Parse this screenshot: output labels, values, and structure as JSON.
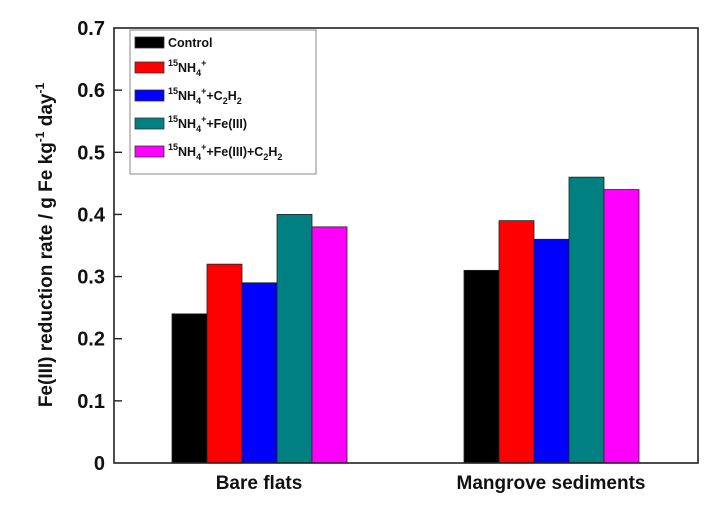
{
  "chart_data": {
    "type": "bar",
    "title": "",
    "xlabel": "",
    "ylabel": "Fe(III) reduction rate / g Fe kg-1 day-1",
    "ylabel_parts": {
      "main": "Fe(III) reduction rate / g Fe kg",
      "sup1": "-1",
      "mid": " day",
      "sup2": "-1"
    },
    "ylim": [
      0,
      0.7
    ],
    "yticks": [
      0,
      0.1,
      0.2,
      0.3,
      0.4,
      0.5,
      0.6,
      0.7
    ],
    "ytick_labels": [
      "0",
      "0.1",
      "0.2",
      "0.3",
      "0.4",
      "0.5",
      "0.6",
      "0.7"
    ],
    "grid": false,
    "legend_position": "top-left",
    "categories": [
      "Bare flats",
      "Mangrove sediments"
    ],
    "series": [
      {
        "name": "Control",
        "color": "#000000",
        "values": [
          0.24,
          0.31
        ],
        "label_parts": [
          {
            "t": "Control"
          }
        ]
      },
      {
        "name": "15NH4+",
        "color": "#ff0000",
        "values": [
          0.32,
          0.39
        ],
        "label_parts": [
          {
            "t": "15",
            "s": "sup"
          },
          {
            "t": "NH"
          },
          {
            "t": "4",
            "s": "sub"
          },
          {
            "t": "+",
            "s": "sup"
          }
        ]
      },
      {
        "name": "15NH4+ +C2H2",
        "color": "#0000ff",
        "values": [
          0.29,
          0.36
        ],
        "label_parts": [
          {
            "t": "15",
            "s": "sup"
          },
          {
            "t": "NH"
          },
          {
            "t": "4",
            "s": "sub"
          },
          {
            "t": "+",
            "s": "sup"
          },
          {
            "t": "+C"
          },
          {
            "t": "2",
            "s": "sub"
          },
          {
            "t": "H"
          },
          {
            "t": "2",
            "s": "sub"
          }
        ]
      },
      {
        "name": "15NH4+ +Fe(III)",
        "color": "#008080",
        "values": [
          0.4,
          0.46
        ],
        "label_parts": [
          {
            "t": "15",
            "s": "sup"
          },
          {
            "t": "NH"
          },
          {
            "t": "4",
            "s": "sub"
          },
          {
            "t": "+",
            "s": "sup"
          },
          {
            "t": "+Fe(III)"
          }
        ]
      },
      {
        "name": "15NH4+ +Fe(III)+C2H2",
        "color": "#ff00ff",
        "values": [
          0.38,
          0.44
        ],
        "label_parts": [
          {
            "t": "15",
            "s": "sup"
          },
          {
            "t": "NH"
          },
          {
            "t": "4",
            "s": "sub"
          },
          {
            "t": "+",
            "s": "sup"
          },
          {
            "t": "+Fe(III)+C"
          },
          {
            "t": "2",
            "s": "sub"
          },
          {
            "t": "H"
          },
          {
            "t": "2",
            "s": "sub"
          }
        ]
      }
    ]
  }
}
